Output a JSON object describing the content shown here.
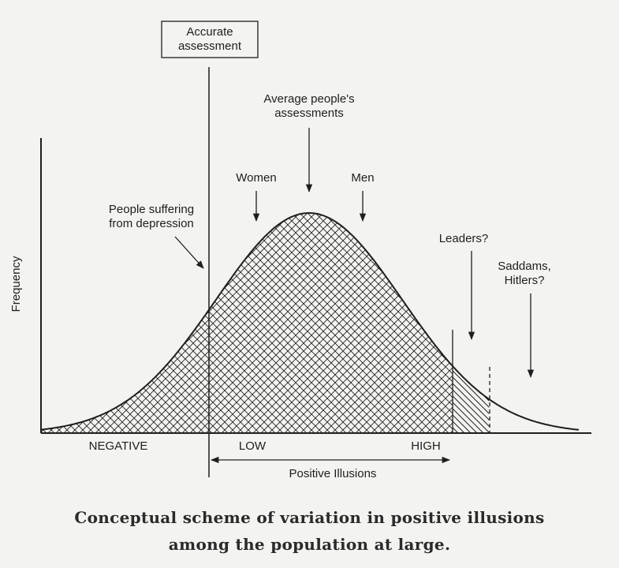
{
  "diagram": {
    "accurate_box": [
      "Accurate",
      "assessment"
    ],
    "average": [
      "Average people's",
      "assessments"
    ],
    "women": "Women",
    "men": "Men",
    "depression": [
      "People suffering",
      "from depression"
    ],
    "leaders": "Leaders?",
    "saddams": [
      "Saddams,",
      "Hitlers?"
    ],
    "ylabel": "Frequency",
    "negative": "NEGATIVE",
    "low": "LOW",
    "high": "HIGH",
    "positive_illusions": "Positive Illusions"
  },
  "caption": {
    "line1": "Conceptual scheme of variation in positive illusions",
    "line2": "among the population at large."
  }
}
